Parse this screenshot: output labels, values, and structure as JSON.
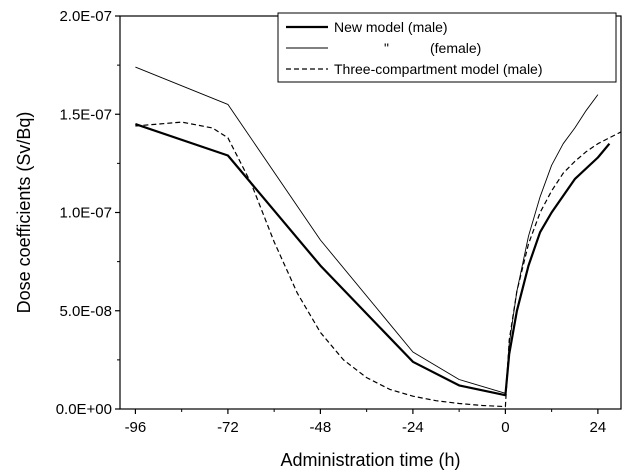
{
  "chart_data": {
    "type": "line",
    "xlabel": "Administration time (h)",
    "ylabel": "Dose coefficients (Sv/Bq)",
    "xlim": [
      -100,
      30
    ],
    "ylim": [
      0,
      2e-07
    ],
    "x_ticks": [
      -96,
      -72,
      -48,
      -24,
      0,
      24
    ],
    "x_tick_labels": [
      "-96",
      "-72",
      "-48",
      "-24",
      "0",
      "24"
    ],
    "y_ticks": [
      0,
      5e-08,
      1e-07,
      1.5e-07,
      2e-07
    ],
    "y_tick_labels": [
      "0.0E+00",
      "5.0E-08",
      "1.0E-07",
      "1.5E-07",
      "2.0E-07"
    ],
    "grid": false,
    "legend_position": "top-right",
    "series": [
      {
        "name": "New model (male)",
        "style": "thick-solid",
        "x": [
          -96,
          -72,
          -48,
          -24,
          -12,
          0,
          1,
          3,
          6,
          9,
          12,
          18,
          24,
          27
        ],
        "y": [
          1.45e-07,
          1.29e-07,
          7.3e-08,
          2.4e-08,
          1.2e-08,
          7e-09,
          2.8e-08,
          5e-08,
          7.3e-08,
          9e-08,
          1e-07,
          1.17e-07,
          1.28e-07,
          1.35e-07
        ]
      },
      {
        "name": "\"",
        "name_suffix": "(female)",
        "style": "thin-solid",
        "x": [
          -96,
          -72,
          -48,
          -24,
          -12,
          0,
          1,
          3,
          6,
          9,
          12,
          15,
          18,
          21,
          24
        ],
        "y": [
          1.74e-07,
          1.55e-07,
          8.6e-08,
          2.9e-08,
          1.5e-08,
          8e-09,
          3.3e-08,
          6e-08,
          8.8e-08,
          1.08e-07,
          1.24e-07,
          1.35e-07,
          1.43e-07,
          1.52e-07,
          1.6e-07
        ]
      },
      {
        "name": "Three-compartment model (male)",
        "style": "dashed",
        "x": [
          -96,
          -84,
          -76,
          -72,
          -66,
          -60,
          -54,
          -48,
          -42,
          -36,
          -30,
          -24,
          -18,
          -12,
          -6,
          0,
          1,
          3,
          6,
          9,
          12,
          15,
          18,
          21,
          24,
          27,
          30
        ],
        "y": [
          1.44e-07,
          1.46e-07,
          1.43e-07,
          1.38e-07,
          1.15e-07,
          8.5e-08,
          5.9e-08,
          3.9e-08,
          2.5e-08,
          1.6e-08,
          1e-08,
          6.5e-09,
          4.2e-09,
          2.8e-09,
          1.8e-09,
          1.2e-09,
          3.5e-08,
          6e-08,
          8.4e-08,
          1e-07,
          1.11e-07,
          1.2e-07,
          1.26e-07,
          1.31e-07,
          1.35e-07,
          1.38e-07,
          1.41e-07
        ]
      }
    ]
  }
}
